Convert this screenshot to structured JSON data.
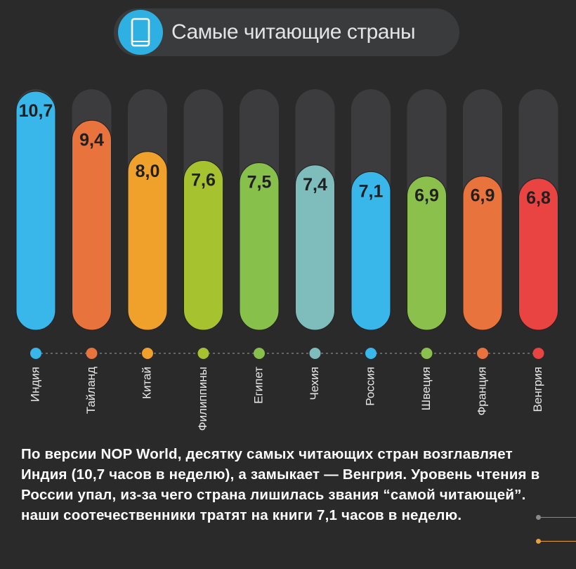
{
  "header": {
    "title": "Самые читающие страны",
    "icon": "tablet-icon"
  },
  "colors": {
    "background": "#2a2a2b",
    "track": "#3c3c3e",
    "title_pill": "#3a3b3d",
    "icon_accent": "#2fb0e2"
  },
  "chart_data": {
    "type": "bar",
    "title": "Самые читающие страны",
    "categories": [
      "Индия",
      "Тайланд",
      "Китай",
      "Филиппины",
      "Египет",
      "Чехия",
      "Россия",
      "Швеция",
      "Франция",
      "Венгрия"
    ],
    "values": [
      10.7,
      9.4,
      8.0,
      7.6,
      7.5,
      7.4,
      7.1,
      6.9,
      6.9,
      6.8
    ],
    "value_labels": [
      "10,7",
      "9,4",
      "8,0",
      "7,6",
      "7,5",
      "7,4",
      "7,1",
      "6,9",
      "6,9",
      "6,8"
    ],
    "colors": [
      "#39b6ea",
      "#e8733c",
      "#f0a12c",
      "#a6c22f",
      "#87c04b",
      "#7fbdbc",
      "#39b6ea",
      "#8cc04c",
      "#e8733c",
      "#e94442"
    ],
    "ylim": [
      0,
      10.7
    ],
    "grid": false,
    "legend": "none"
  },
  "summary": "По версии NOP World, десятку самых читающих стран возглавляет Индия (10,7 часов в неделю), а замыкает — Венгрия. Уровень чтения в России упал, из-за чего страна лишилась звания “самой читающей”. наши соотечественники тратят на книги 7,1 часов в неделю."
}
